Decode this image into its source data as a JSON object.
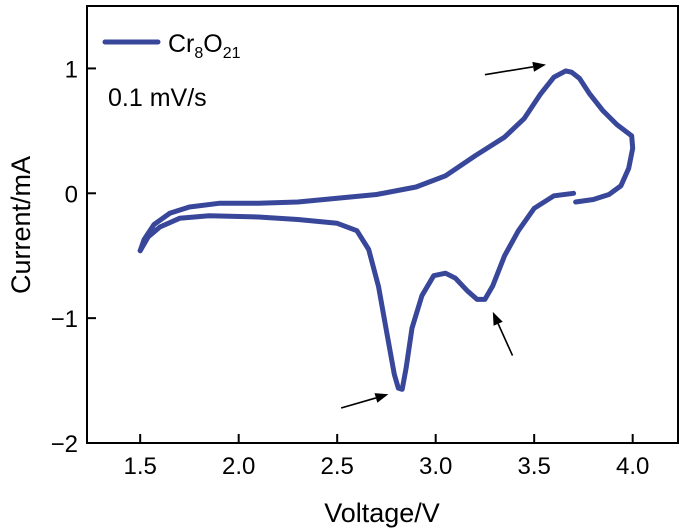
{
  "chart_data": {
    "type": "line",
    "title": "",
    "xlabel": "Voltage/V",
    "ylabel": "Current/mA",
    "xlim": [
      1.23,
      4.23
    ],
    "ylim": [
      -2.0,
      1.5
    ],
    "xticks": [
      1.5,
      2.0,
      2.5,
      3.0,
      3.5,
      4.0
    ],
    "xtick_labels": [
      "1.5",
      "2.0",
      "2.5",
      "3.0",
      "3.5",
      "4.0"
    ],
    "yticks": [
      -2,
      -1,
      0,
      1
    ],
    "ytick_labels": [
      "−2",
      "−1",
      "0",
      "1"
    ],
    "grid": false,
    "legend": {
      "position": "top-left",
      "entries": [
        {
          "base": "Cr",
          "sub1": "8",
          "mid": "O",
          "sub2": "21"
        }
      ]
    },
    "annotation": "0.1 mV/s",
    "series": [
      {
        "name": "Cr8O21",
        "color": "#39479a",
        "anodic": [
          [
            3.71,
            -0.07
          ],
          [
            3.8,
            -0.05
          ],
          [
            3.88,
            -0.01
          ],
          [
            3.94,
            0.06
          ],
          [
            3.98,
            0.2
          ],
          [
            4.0,
            0.36
          ],
          [
            3.995,
            0.46
          ],
          [
            3.92,
            0.55
          ],
          [
            3.85,
            0.66
          ],
          [
            3.78,
            0.8
          ],
          [
            3.73,
            0.92
          ],
          [
            3.69,
            0.97
          ],
          [
            3.66,
            0.98
          ],
          [
            3.6,
            0.93
          ],
          [
            3.53,
            0.79
          ],
          [
            3.45,
            0.6
          ],
          [
            3.35,
            0.45
          ],
          [
            3.2,
            0.3
          ],
          [
            3.05,
            0.14
          ],
          [
            2.9,
            0.05
          ],
          [
            2.7,
            -0.01
          ],
          [
            2.5,
            -0.04
          ],
          [
            2.3,
            -0.07
          ],
          [
            2.1,
            -0.08
          ],
          [
            1.9,
            -0.08
          ],
          [
            1.75,
            -0.11
          ],
          [
            1.65,
            -0.16
          ],
          [
            1.57,
            -0.25
          ],
          [
            1.52,
            -0.37
          ],
          [
            1.5,
            -0.46
          ]
        ],
        "cathodic": [
          [
            1.5,
            -0.46
          ],
          [
            1.54,
            -0.35
          ],
          [
            1.6,
            -0.27
          ],
          [
            1.7,
            -0.2
          ],
          [
            1.85,
            -0.18
          ],
          [
            2.1,
            -0.19
          ],
          [
            2.3,
            -0.21
          ],
          [
            2.5,
            -0.24
          ],
          [
            2.6,
            -0.3
          ],
          [
            2.66,
            -0.45
          ],
          [
            2.71,
            -0.75
          ],
          [
            2.75,
            -1.1
          ],
          [
            2.79,
            -1.45
          ],
          [
            2.81,
            -1.56
          ],
          [
            2.83,
            -1.57
          ],
          [
            2.85,
            -1.4
          ],
          [
            2.88,
            -1.08
          ],
          [
            2.93,
            -0.82
          ],
          [
            2.99,
            -0.66
          ],
          [
            3.05,
            -0.64
          ],
          [
            3.1,
            -0.68
          ],
          [
            3.16,
            -0.78
          ],
          [
            3.21,
            -0.85
          ],
          [
            3.25,
            -0.85
          ],
          [
            3.29,
            -0.74
          ],
          [
            3.35,
            -0.5
          ],
          [
            3.42,
            -0.3
          ],
          [
            3.5,
            -0.12
          ],
          [
            3.6,
            -0.02
          ],
          [
            3.7,
            0.0
          ]
        ]
      }
    ],
    "arrows": [
      {
        "from": [
          3.25,
          0.95
        ],
        "to": [
          3.56,
          1.03
        ],
        "target": "anodic-peak"
      },
      {
        "from": [
          3.39,
          -1.3
        ],
        "to": [
          3.29,
          -0.95
        ],
        "target": "cathodic-peak-2"
      },
      {
        "from": [
          2.52,
          -1.72
        ],
        "to": [
          2.76,
          -1.61
        ],
        "target": "cathodic-peak-1"
      }
    ]
  }
}
